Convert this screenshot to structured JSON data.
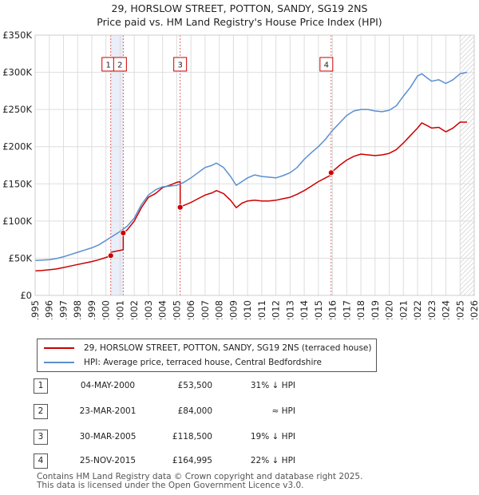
{
  "header": {
    "title_line1": "29, HORSLOW STREET, POTTON, SANDY, SG19 2NS",
    "title_line2": "Price paid vs. HM Land Registry's House Price Index (HPI)"
  },
  "colors": {
    "price_paid": "#cc0000",
    "hpi": "#5b8fd0",
    "shade": "#e9eef8",
    "marker_line": "#e06060"
  },
  "chart_data": {
    "type": "line",
    "title": "29, HORSLOW STREET, POTTON, SANDY, SG19 2NS",
    "subtitle": "Price paid vs. HM Land Registry's House Price Index (HPI)",
    "xlabel": "",
    "ylabel": "",
    "xlim": [
      1995,
      2026
    ],
    "ylim": [
      0,
      350000
    ],
    "y_ticks": [
      {
        "value": 0,
        "label": "£0"
      },
      {
        "value": 50000,
        "label": "£50K"
      },
      {
        "value": 100000,
        "label": "£100K"
      },
      {
        "value": 150000,
        "label": "£150K"
      },
      {
        "value": 200000,
        "label": "£200K"
      },
      {
        "value": 250000,
        "label": "£250K"
      },
      {
        "value": 300000,
        "label": "£300K"
      },
      {
        "value": 350000,
        "label": "£350K"
      }
    ],
    "x_ticks": [
      "1995",
      "1996",
      "1997",
      "1998",
      "1999",
      "2000",
      "2001",
      "2002",
      "2003",
      "2004",
      "2005",
      "2006",
      "2007",
      "2008",
      "2009",
      "2010",
      "2011",
      "2012",
      "2013",
      "2014",
      "2015",
      "2016",
      "2017",
      "2018",
      "2019",
      "2020",
      "2021",
      "2022",
      "2023",
      "2024",
      "2025",
      "2026"
    ],
    "grid": true,
    "shaded_ranges": [
      [
        2000.34,
        2001.22
      ]
    ],
    "future_hatch_from": 2025.0,
    "series": [
      {
        "name": "29, HORSLOW STREET, POTTON, SANDY, SG19 2NS (terraced house)",
        "color": "#cc0000",
        "x": [
          1995.0,
          1995.5,
          1996.0,
          1996.5,
          1997.0,
          1997.5,
          1998.0,
          1998.5,
          1999.0,
          1999.5,
          2000.0,
          2000.34,
          2000.34,
          2000.6,
          2001.0,
          2001.22,
          2001.22,
          2001.5,
          2002.0,
          2002.5,
          2003.0,
          2003.5,
          2004.0,
          2004.5,
          2005.0,
          2005.24,
          2005.24,
          2005.5,
          2006.0,
          2006.5,
          2007.0,
          2007.5,
          2007.8,
          2008.3,
          2008.8,
          2009.2,
          2009.6,
          2010.0,
          2010.5,
          2011.0,
          2011.5,
          2012.0,
          2012.5,
          2013.0,
          2013.5,
          2014.0,
          2014.5,
          2015.0,
          2015.5,
          2015.9,
          2015.9,
          2016.5,
          2017.0,
          2017.5,
          2018.0,
          2018.5,
          2019.0,
          2019.5,
          2020.0,
          2020.5,
          2021.0,
          2021.5,
          2022.0,
          2022.3,
          2022.7,
          2023.0,
          2023.5,
          2024.0,
          2024.5,
          2025.0,
          2025.5
        ],
        "values": [
          33000,
          33500,
          34500,
          35500,
          37500,
          39500,
          41500,
          43500,
          45500,
          48000,
          51000,
          53500,
          58000,
          59000,
          60500,
          61500,
          84000,
          88000,
          100000,
          118000,
          132000,
          137000,
          145000,
          148000,
          152000,
          153000,
          118500,
          121000,
          125000,
          130000,
          135000,
          138000,
          141000,
          137000,
          128000,
          118000,
          124000,
          127000,
          128000,
          127000,
          127000,
          128000,
          130000,
          132000,
          136000,
          141000,
          147000,
          153000,
          158000,
          162000,
          164995,
          175000,
          182000,
          187000,
          190000,
          189000,
          188000,
          189000,
          191000,
          196000,
          205000,
          215000,
          225000,
          232000,
          228000,
          225000,
          226000,
          220000,
          225000,
          233000,
          233000
        ]
      },
      {
        "name": "HPI: Average price, terraced house, Central Bedfordshire",
        "color": "#5b8fd0",
        "x": [
          1995.0,
          1995.5,
          1996.0,
          1996.5,
          1997.0,
          1997.5,
          1998.0,
          1998.5,
          1999.0,
          1999.5,
          2000.0,
          2000.5,
          2001.0,
          2001.5,
          2002.0,
          2002.5,
          2003.0,
          2003.5,
          2004.0,
          2004.5,
          2005.0,
          2005.5,
          2006.0,
          2006.5,
          2007.0,
          2007.5,
          2007.8,
          2008.3,
          2008.8,
          2009.2,
          2009.6,
          2010.0,
          2010.5,
          2011.0,
          2011.5,
          2012.0,
          2012.5,
          2013.0,
          2013.5,
          2014.0,
          2014.5,
          2015.0,
          2015.5,
          2016.0,
          2016.5,
          2017.0,
          2017.5,
          2018.0,
          2018.5,
          2019.0,
          2019.5,
          2020.0,
          2020.5,
          2021.0,
          2021.5,
          2022.0,
          2022.3,
          2022.7,
          2023.0,
          2023.5,
          2024.0,
          2024.5,
          2025.0,
          2025.5
        ],
        "values": [
          47000,
          47500,
          48000,
          49500,
          52000,
          55000,
          58000,
          61000,
          64000,
          68000,
          74000,
          80000,
          86000,
          93000,
          104000,
          122000,
          135000,
          142000,
          146000,
          147000,
          148000,
          152000,
          158000,
          165000,
          172000,
          175000,
          178000,
          172000,
          160000,
          148000,
          153000,
          158000,
          162000,
          160000,
          159000,
          158000,
          161000,
          165000,
          172000,
          183000,
          192000,
          200000,
          210000,
          222000,
          232000,
          242000,
          248000,
          250000,
          250000,
          248000,
          247000,
          249000,
          255000,
          268000,
          280000,
          295000,
          298000,
          292000,
          288000,
          290000,
          285000,
          290000,
          298000,
          300000
        ]
      }
    ],
    "sales": [
      {
        "num": "1",
        "x": 2000.34,
        "price": 53500,
        "date": "04-MAY-2000",
        "price_label": "£53,500",
        "hpi": "31% ↓ HPI"
      },
      {
        "num": "2",
        "x": 2001.22,
        "price": 84000,
        "date": "23-MAR-2001",
        "price_label": "£84,000",
        "hpi": "≈ HPI"
      },
      {
        "num": "3",
        "x": 2005.24,
        "price": 118500,
        "date": "30-MAR-2005",
        "price_label": "£118,500",
        "hpi": "19% ↓ HPI"
      },
      {
        "num": "4",
        "x": 2015.9,
        "price": 164995,
        "date": "25-NOV-2015",
        "price_label": "£164,995",
        "hpi": "22% ↓ HPI"
      }
    ]
  },
  "legend": {
    "price_label": "29, HORSLOW STREET, POTTON, SANDY, SG19 2NS (terraced house)",
    "hpi_label": "HPI: Average price, terraced house, Central Bedfordshire"
  },
  "footer": {
    "line1": "Contains HM Land Registry data © Crown copyright and database right 2025.",
    "line2": "This data is licensed under the Open Government Licence v3.0."
  }
}
